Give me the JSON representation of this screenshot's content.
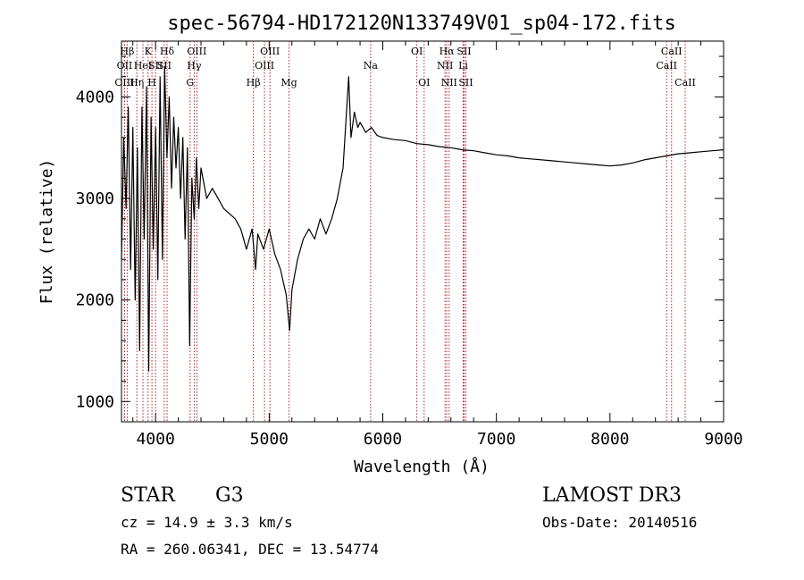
{
  "chart_data": {
    "type": "line",
    "title": "spec-56794-HD172120N133749V01_sp04-172.fits",
    "xlabel": "Wavelength (Å)",
    "ylabel": "Flux (relative)",
    "xlim": [
      3700,
      9000
    ],
    "ylim": [
      800,
      4550
    ],
    "x_ticks": [
      4000,
      5000,
      6000,
      7000,
      8000,
      9000
    ],
    "y_ticks": [
      1000,
      2000,
      3000,
      4000
    ],
    "x_tick_labels": [
      "4000",
      "5000",
      "6000",
      "7000",
      "8000",
      "9000"
    ],
    "y_tick_labels": [
      "1000",
      "2000",
      "3000",
      "4000"
    ],
    "grid": false,
    "line_color": "#000000",
    "marker_color": "#b22222",
    "series": [
      {
        "x": [
          3700,
          3720,
          3740,
          3760,
          3780,
          3800,
          3820,
          3840,
          3860,
          3880,
          3900,
          3920,
          3940,
          3960,
          3980,
          4000,
          4020,
          4040,
          4060,
          4080,
          4100,
          4120,
          4140,
          4160,
          4180,
          4200,
          4220,
          4240,
          4260,
          4280,
          4300,
          4320,
          4340,
          4360,
          4380,
          4400,
          4450,
          4500,
          4550,
          4600,
          4650,
          4700,
          4750,
          4800,
          4850,
          4880,
          4900,
          4950,
          5000,
          5050,
          5100,
          5150,
          5180,
          5200,
          5250,
          5300,
          5350,
          5400,
          5450,
          5500,
          5550,
          5600,
          5650,
          5700,
          5720,
          5750,
          5780,
          5800,
          5850,
          5900,
          5950,
          6000,
          6100,
          6200,
          6300,
          6400,
          6500,
          6600,
          6700,
          6800,
          6900,
          7000,
          7100,
          7200,
          7300,
          7400,
          7500,
          7600,
          7700,
          7800,
          7900,
          8000,
          8100,
          8200,
          8300,
          8400,
          8500,
          8600,
          8700,
          8800,
          8900,
          9000
        ],
        "y": [
          2400,
          3600,
          2900,
          3900,
          2300,
          3700,
          2000,
          3500,
          1500,
          3900,
          2600,
          4100,
          1300,
          3800,
          2500,
          3700,
          2200,
          4200,
          2400,
          4300,
          3400,
          4000,
          3100,
          3800,
          3300,
          3700,
          3000,
          3600,
          2600,
          3500,
          1550,
          3200,
          2800,
          3400,
          2900,
          3300,
          3000,
          3100,
          3000,
          2900,
          2850,
          2800,
          2700,
          2500,
          2700,
          2300,
          2650,
          2500,
          2700,
          2450,
          2300,
          2050,
          1700,
          2100,
          2400,
          2600,
          2700,
          2600,
          2800,
          2650,
          2800,
          3000,
          3300,
          4200,
          3600,
          3850,
          3700,
          3750,
          3650,
          3700,
          3620,
          3600,
          3580,
          3570,
          3540,
          3530,
          3510,
          3500,
          3480,
          3470,
          3450,
          3430,
          3420,
          3400,
          3390,
          3380,
          3370,
          3360,
          3350,
          3340,
          3330,
          3320,
          3330,
          3350,
          3380,
          3400,
          3420,
          3440,
          3450,
          3460,
          3470,
          3480
        ]
      }
    ],
    "lines": [
      {
        "label": "Hβ",
        "x": 3750,
        "row": 0
      },
      {
        "label": "OII",
        "x": 3727,
        "row": 1
      },
      {
        "label": "OIII",
        "x": 3727,
        "row": 2
      },
      {
        "label": "Hη",
        "x": 3835,
        "row": 2
      },
      {
        "label": "HeI",
        "x": 3889,
        "row": 1
      },
      {
        "label": "K",
        "x": 3934,
        "row": 0
      },
      {
        "label": "H",
        "x": 3968,
        "row": 2
      },
      {
        "label": "SII",
        "x": 4000,
        "row": 1
      },
      {
        "label": "Hδ",
        "x": 4101,
        "row": 0
      },
      {
        "label": "SII",
        "x": 4076,
        "row": 1
      },
      {
        "label": "OIII",
        "x": 4363,
        "row": 0
      },
      {
        "label": "Hγ",
        "x": 4340,
        "row": 1
      },
      {
        "label": "G",
        "x": 4304,
        "row": 2
      },
      {
        "label": "Hβ",
        "x": 4861,
        "row": 2
      },
      {
        "label": "OIII",
        "x": 5007,
        "row": 0
      },
      {
        "label": "OIII",
        "x": 4959,
        "row": 1
      },
      {
        "label": "Mg",
        "x": 5175,
        "row": 2
      },
      {
        "label": "Na",
        "x": 5893,
        "row": 1
      },
      {
        "label": "OI",
        "x": 6300,
        "row": 0
      },
      {
        "label": "OI",
        "x": 6364,
        "row": 2
      },
      {
        "label": "Hα",
        "x": 6563,
        "row": 0
      },
      {
        "label": "SII",
        "x": 6716,
        "row": 0
      },
      {
        "label": "NII",
        "x": 6548,
        "row": 1
      },
      {
        "label": "Li",
        "x": 6708,
        "row": 1
      },
      {
        "label": "NII",
        "x": 6584,
        "row": 2
      },
      {
        "label": "SII",
        "x": 6731,
        "row": 2
      },
      {
        "label": "CaII",
        "x": 8542,
        "row": 0
      },
      {
        "label": "CaII",
        "x": 8498,
        "row": 1
      },
      {
        "label": "CaII",
        "x": 8662,
        "row": 2
      }
    ]
  },
  "info": {
    "object_class": "STAR",
    "subclass": "G3",
    "survey": "LAMOST DR3",
    "cz": "cz = 14.9 ± 3.3 km/s",
    "obs_date": "Obs-Date: 20140516",
    "coords": "RA = 260.06341, DEC =  13.54774"
  }
}
